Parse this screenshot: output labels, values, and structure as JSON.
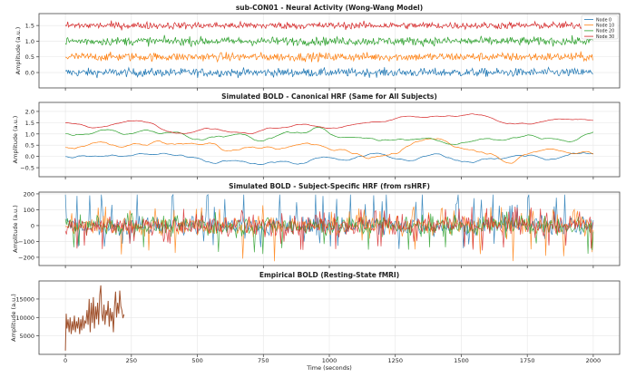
{
  "chart_data": [
    {
      "type": "line",
      "title": "sub-CON01 - Neural Activity (Wong-Wang Model)",
      "xlabel": "",
      "ylabel": "Amplitude (a.u.)",
      "xlim": [
        -100,
        2100
      ],
      "ylim": [
        -0.49,
        1.88
      ],
      "yticks": [
        0.0,
        0.5,
        1.0,
        1.5
      ],
      "grid": true,
      "legend": "top-right",
      "series": [
        {
          "name": "Node 0",
          "color": "#1f77b4",
          "baseline": 0.0,
          "spread": 0.12
        },
        {
          "name": "Node 10",
          "color": "#ff7f0e",
          "baseline": 0.5,
          "spread": 0.12
        },
        {
          "name": "Node 20",
          "color": "#2ca02c",
          "baseline": 1.0,
          "spread": 0.12
        },
        {
          "name": "Node 30",
          "color": "#d62728",
          "baseline": 1.5,
          "spread": 0.1
        }
      ],
      "x_range": [
        0,
        2000
      ]
    },
    {
      "type": "line",
      "title": "Simulated BOLD - Canonical HRF (Same for All Subjects)",
      "ylabel": "Amplitude (a.u.)",
      "xlim": [
        -100,
        2100
      ],
      "ylim": [
        -0.9,
        2.4
      ],
      "yticks": [
        -0.5,
        0.0,
        0.5,
        1.0,
        1.5,
        2.0
      ],
      "grid": true,
      "series": [
        {
          "color": "#1f77b4",
          "baseline": 0.0,
          "spread": 0.3
        },
        {
          "color": "#ff7f0e",
          "baseline": 0.4,
          "spread": 0.35
        },
        {
          "color": "#2ca02c",
          "baseline": 1.0,
          "spread": 0.3
        },
        {
          "color": "#d62728",
          "baseline": 1.5,
          "spread": 0.2
        }
      ],
      "x_range": [
        0,
        2000
      ]
    },
    {
      "type": "line",
      "title": "Simulated BOLD - Subject-Specific HRF (from rsHRF)",
      "ylabel": "Amplitude (a.u.)",
      "xlim": [
        -100,
        2100
      ],
      "ylim": [
        -252,
        211
      ],
      "yticks": [
        -200,
        -100,
        0,
        100,
        200
      ],
      "grid": true,
      "series": [
        {
          "color": "#1f77b4",
          "min": -150,
          "max": 195
        },
        {
          "color": "#ff7f0e",
          "min": -230,
          "max": 130
        },
        {
          "color": "#2ca02c",
          "min": -180,
          "max": 90
        },
        {
          "color": "#d62728",
          "min": -160,
          "max": 120
        }
      ],
      "x_range": [
        0,
        2000
      ]
    },
    {
      "type": "line",
      "title": "Empirical BOLD (Resting-State fMRI)",
      "xlabel": "Time (seconds)",
      "ylabel": "Amplitude (a.u.)",
      "xlim": [
        -100,
        2100
      ],
      "ylim": [
        0,
        19900
      ],
      "yticks": [
        5000,
        10000,
        15000
      ],
      "xticks": [
        0,
        250,
        500,
        750,
        1000,
        1250,
        1500,
        1750,
        2000
      ],
      "grid": true,
      "series": [
        {
          "color": "#a0522d",
          "x": [
            0,
            3,
            6,
            10,
            14,
            18,
            22,
            26,
            30,
            34,
            38,
            42,
            46,
            50,
            54,
            58,
            62,
            66,
            70,
            74,
            78,
            82,
            86,
            90,
            94,
            98,
            102,
            106,
            110,
            114,
            118,
            122,
            126,
            130,
            134,
            138,
            142,
            146,
            150,
            154,
            158,
            162,
            166,
            170,
            174,
            178,
            182,
            186,
            190,
            194,
            198,
            202,
            206,
            210,
            214,
            218,
            222
          ],
          "y": [
            1000,
            11000,
            7000,
            9500,
            6000,
            10000,
            5500,
            9000,
            6500,
            10500,
            6000,
            9000,
            7000,
            10000,
            5500,
            9500,
            6500,
            10500,
            7000,
            9000,
            8500,
            12000,
            8000,
            15000,
            6000,
            14000,
            8500,
            15500,
            7000,
            13000,
            9500,
            14000,
            8000,
            16000,
            18700,
            11000,
            9000,
            13500,
            8000,
            12000,
            10500,
            14500,
            7500,
            12500,
            9000,
            11500,
            6000,
            13000,
            17000,
            10000,
            14000,
            11000,
            17300,
            13000,
            12000,
            9800,
            10800
          ]
        }
      ]
    }
  ]
}
